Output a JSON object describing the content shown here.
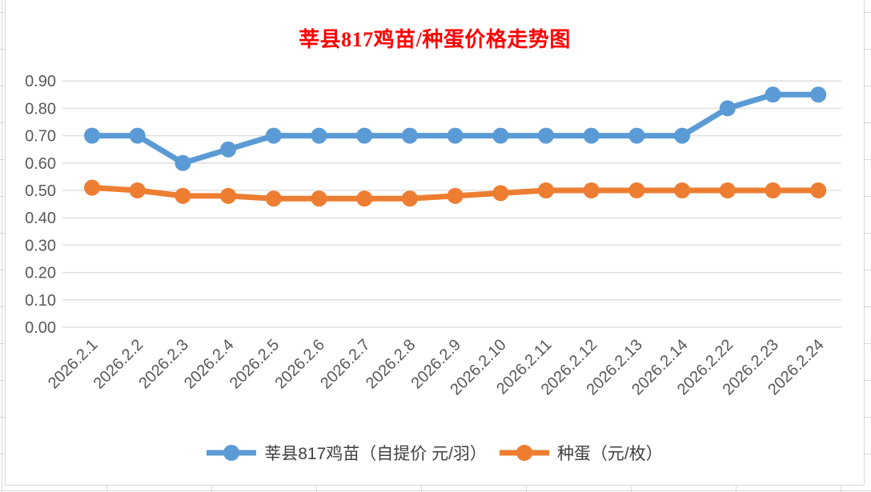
{
  "chart_data": {
    "type": "line",
    "title": "莘县817鸡苗/种蛋价格走势图",
    "title_color": "#ff0000",
    "categories": [
      "2026.2.1",
      "2026.2.2",
      "2026.2.3",
      "2026.2.4",
      "2026.2.5",
      "2026.2.6",
      "2026.2.7",
      "2026.2.8",
      "2026.2.9",
      "2026.2.10",
      "2026.2.11",
      "2026.2.12",
      "2026.2.13",
      "2026.2.14",
      "2026.2.22",
      "2026.2.23",
      "2026.2.24"
    ],
    "series": [
      {
        "name": "莘县817鸡苗（自提价 元/羽）",
        "color": "#5B9BD5",
        "marker": "circle",
        "values": [
          0.7,
          0.7,
          0.6,
          0.65,
          0.7,
          0.7,
          0.7,
          0.7,
          0.7,
          0.7,
          0.7,
          0.7,
          0.7,
          0.7,
          0.8,
          0.85,
          0.85
        ]
      },
      {
        "name": "种蛋（元/枚）",
        "color": "#ED7D31",
        "marker": "circle",
        "values": [
          0.51,
          0.5,
          0.48,
          0.48,
          0.47,
          0.47,
          0.47,
          0.47,
          0.48,
          0.49,
          0.5,
          0.5,
          0.5,
          0.5,
          0.5,
          0.5,
          0.5
        ]
      }
    ],
    "xlabel": "",
    "ylabel": "",
    "ylim": [
      0.0,
      0.9
    ],
    "ytick_step": 0.1,
    "ytick_labels": [
      "0.00",
      "0.10",
      "0.20",
      "0.30",
      "0.40",
      "0.50",
      "0.60",
      "0.70",
      "0.80",
      "0.90"
    ],
    "grid": "horizontal",
    "gridline_color": "#dcdcdc",
    "axis_label_color": "#595959",
    "x_label_rotation_deg": 45,
    "legend_position": "bottom"
  }
}
